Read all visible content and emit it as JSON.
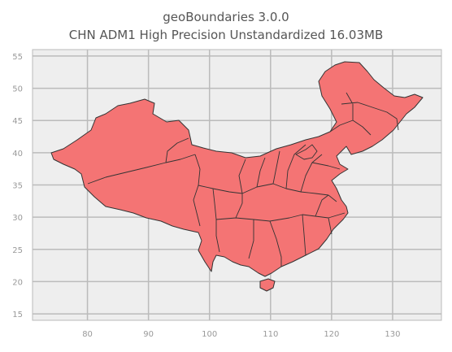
{
  "title": {
    "line1": "geoBoundaries 3.0.0",
    "line2": "CHN ADM1 High Precision Unstandardized 16.03MB"
  },
  "map": {
    "fill_color": "#f47474",
    "edge_color": "#333333",
    "background": "#eeeeee",
    "grid_color": "#bbbbbb",
    "x_ticks": [
      80,
      90,
      100,
      110,
      120,
      130
    ],
    "y_ticks": [
      15,
      20,
      25,
      30,
      35,
      40,
      45,
      50,
      55
    ],
    "xlim": [
      71,
      138
    ],
    "ylim": [
      14,
      56
    ]
  }
}
